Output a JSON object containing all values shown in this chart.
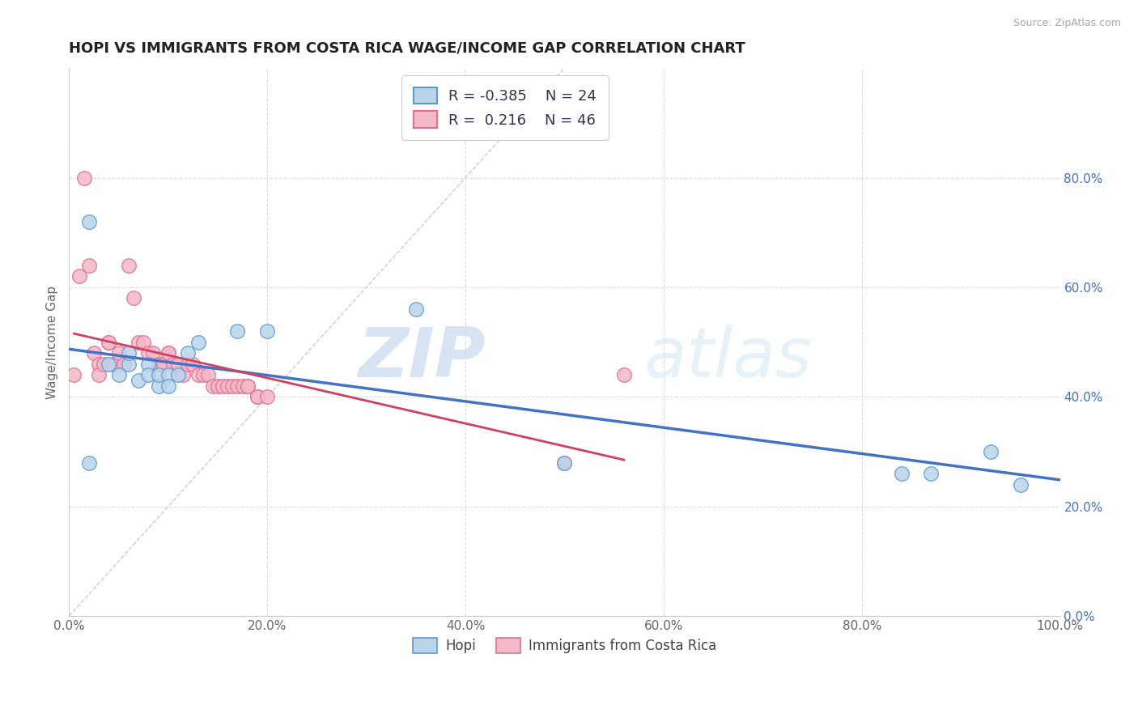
{
  "title": "HOPI VS IMMIGRANTS FROM COSTA RICA WAGE/INCOME GAP CORRELATION CHART",
  "source": "Source: ZipAtlas.com",
  "ylabel": "Wage/Income Gap",
  "legend_label1": "Hopi",
  "legend_label2": "Immigrants from Costa Rica",
  "R1": -0.385,
  "N1": 24,
  "R2": 0.216,
  "N2": 46,
  "color_hopi_fill": "#bad4ea",
  "color_hopi_edge": "#5b9bd5",
  "color_costa_rica_fill": "#f4b8c8",
  "color_costa_rica_edge": "#e07090",
  "color_hopi_line": "#4472c4",
  "color_costa_rica_line": "#d04060",
  "watermark_zip": "ZIP",
  "watermark_atlas": "atlas",
  "hopi_x": [
    0.02,
    0.02,
    0.04,
    0.05,
    0.06,
    0.06,
    0.07,
    0.08,
    0.08,
    0.09,
    0.09,
    0.1,
    0.1,
    0.11,
    0.12,
    0.13,
    0.17,
    0.2,
    0.35,
    0.5,
    0.84,
    0.87,
    0.93,
    0.96
  ],
  "hopi_y": [
    0.28,
    0.72,
    0.46,
    0.44,
    0.46,
    0.48,
    0.43,
    0.46,
    0.44,
    0.42,
    0.44,
    0.44,
    0.42,
    0.44,
    0.48,
    0.5,
    0.52,
    0.52,
    0.56,
    0.28,
    0.26,
    0.26,
    0.3,
    0.24
  ],
  "costa_rica_x": [
    0.005,
    0.01,
    0.015,
    0.02,
    0.025,
    0.03,
    0.03,
    0.035,
    0.04,
    0.04,
    0.045,
    0.05,
    0.055,
    0.06,
    0.065,
    0.07,
    0.075,
    0.08,
    0.085,
    0.09,
    0.09,
    0.095,
    0.1,
    0.1,
    0.105,
    0.11,
    0.115,
    0.12,
    0.125,
    0.13,
    0.135,
    0.14,
    0.145,
    0.15,
    0.155,
    0.16,
    0.165,
    0.17,
    0.175,
    0.18,
    0.18,
    0.19,
    0.19,
    0.2,
    0.5,
    0.56
  ],
  "costa_rica_y": [
    0.44,
    0.62,
    0.8,
    0.64,
    0.48,
    0.46,
    0.44,
    0.46,
    0.5,
    0.5,
    0.46,
    0.48,
    0.46,
    0.64,
    0.58,
    0.5,
    0.5,
    0.48,
    0.48,
    0.46,
    0.46,
    0.46,
    0.48,
    0.48,
    0.46,
    0.46,
    0.44,
    0.46,
    0.46,
    0.44,
    0.44,
    0.44,
    0.42,
    0.42,
    0.42,
    0.42,
    0.42,
    0.42,
    0.42,
    0.42,
    0.42,
    0.4,
    0.4,
    0.4,
    0.28,
    0.44
  ],
  "xlim": [
    0.0,
    1.0
  ],
  "ylim": [
    0.0,
    1.0
  ],
  "xtick_vals": [
    0.0,
    0.2,
    0.4,
    0.6,
    0.8,
    1.0
  ],
  "xtick_labels": [
    "0.0%",
    "20.0%",
    "40.0%",
    "60.0%",
    "80.0%",
    "100.0%"
  ],
  "ytick_vals": [
    0.0,
    0.2,
    0.4,
    0.6,
    0.8
  ],
  "ytick_labels_right": [
    "0.0%",
    "20.0%",
    "40.0%",
    "60.0%",
    "80.0%"
  ],
  "background_color": "#ffffff",
  "grid_color": "#dddddd",
  "title_fontsize": 13,
  "axis_label_fontsize": 11,
  "tick_fontsize": 11,
  "scatter_size": 160
}
